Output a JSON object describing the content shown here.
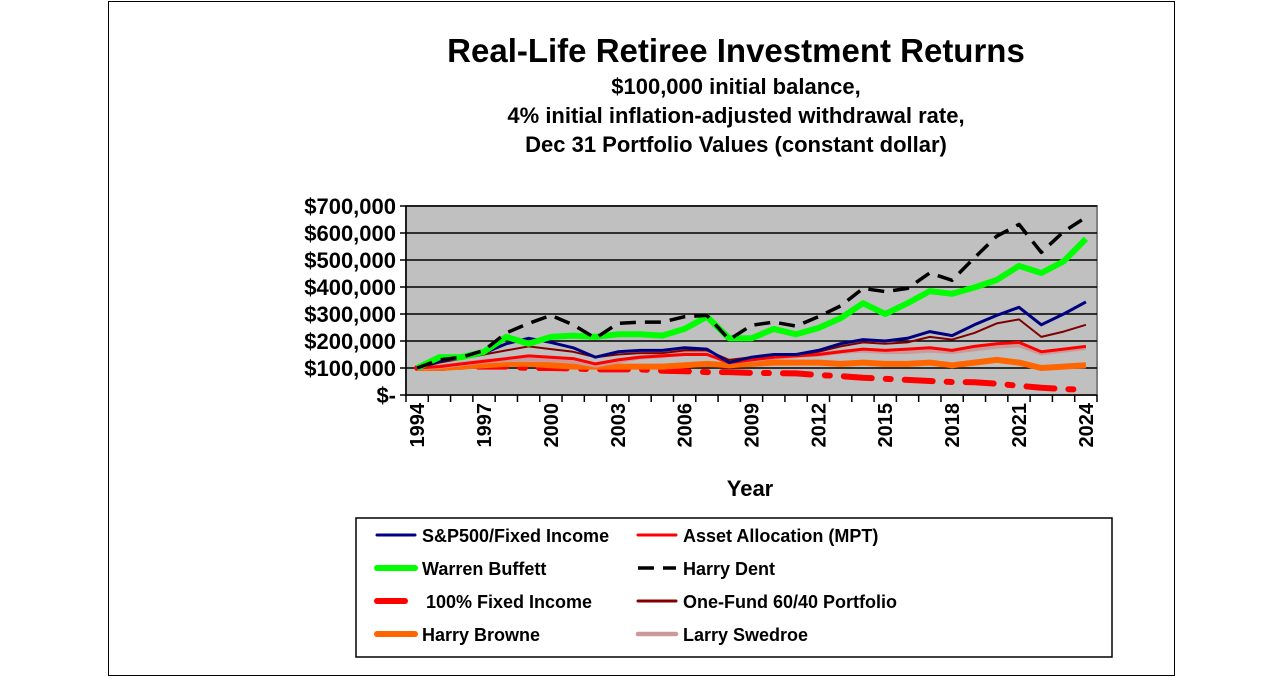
{
  "chart_data": {
    "type": "line",
    "title": "Real-Life Retiree Investment Returns",
    "subtitle": [
      "$100,000 initial balance,",
      "4%  initial inflation-adjusted withdrawal rate,",
      "Dec 31 Portfolio Values (constant dollar)"
    ],
    "xlabel": "Year",
    "ylabel": "",
    "ylim": [
      0,
      700000
    ],
    "yticks": [
      0,
      100000,
      200000,
      300000,
      400000,
      500000,
      600000,
      700000
    ],
    "ytick_labels": [
      "$-",
      "$100,000",
      "$200,000",
      "$300,000",
      "$400,000",
      "$500,000",
      "$600,000",
      "$700,000"
    ],
    "x": [
      1994,
      1995,
      1996,
      1997,
      1998,
      1999,
      2000,
      2001,
      2002,
      2003,
      2004,
      2005,
      2006,
      2007,
      2008,
      2009,
      2010,
      2011,
      2012,
      2013,
      2014,
      2015,
      2016,
      2017,
      2018,
      2019,
      2020,
      2021,
      2022,
      2023,
      2024
    ],
    "xtick_labels": [
      "1994",
      "1997",
      "2000",
      "2003",
      "2006",
      "2009",
      "2012",
      "2015",
      "2018",
      "2021",
      "2024"
    ],
    "grid": true,
    "legend_placement": "bottom",
    "plot_background": "#c0c0c0",
    "series": [
      {
        "name": "S&P500/Fixed Income",
        "color": "#000080",
        "style": "solid",
        "values": [
          100000,
          125000,
          140000,
          155000,
          190000,
          210000,
          195000,
          175000,
          140000,
          160000,
          165000,
          165000,
          175000,
          170000,
          120000,
          140000,
          150000,
          150000,
          165000,
          190000,
          205000,
          200000,
          210000,
          235000,
          220000,
          260000,
          295000,
          325000,
          260000,
          300000,
          345000
        ]
      },
      {
        "name": "Asset Allocation (MPT)",
        "color": "#ff0000",
        "style": "solid",
        "values": [
          100000,
          105000,
          115000,
          125000,
          135000,
          145000,
          140000,
          135000,
          115000,
          130000,
          140000,
          145000,
          150000,
          150000,
          120000,
          130000,
          140000,
          145000,
          150000,
          160000,
          170000,
          165000,
          170000,
          175000,
          165000,
          180000,
          190000,
          195000,
          160000,
          170000,
          180000
        ]
      },
      {
        "name": "Warren Buffett",
        "color": "#00ff00",
        "style": "solid",
        "values": [
          100000,
          140000,
          140000,
          160000,
          215000,
          190000,
          215000,
          220000,
          215000,
          225000,
          225000,
          220000,
          245000,
          290000,
          210000,
          210000,
          245000,
          225000,
          248000,
          285000,
          340000,
          300000,
          340000,
          385000,
          375000,
          398000,
          426000,
          478000,
          452000,
          495000,
          578000
        ]
      },
      {
        "name": "Harry Dent",
        "color": "#000000",
        "style": "dash",
        "values": [
          100000,
          130000,
          140000,
          165000,
          230000,
          265000,
          295000,
          260000,
          210000,
          265000,
          270000,
          270000,
          290000,
          295000,
          205000,
          258000,
          270000,
          255000,
          290000,
          330000,
          395000,
          383000,
          395000,
          452000,
          425000,
          508000,
          588000,
          632000,
          528000,
          605000,
          658000
        ]
      },
      {
        "name": "100% Fixed Income",
        "color": "#ff0000",
        "style": "dashdot",
        "values": [
          100000,
          100000,
          105000,
          105000,
          105000,
          100000,
          100000,
          98000,
          95000,
          95000,
          95000,
          90000,
          88000,
          85000,
          85000,
          82000,
          81000,
          80000,
          74000,
          70000,
          64000,
          60000,
          56000,
          52000,
          48000,
          47000,
          42000,
          34000,
          27000,
          22000,
          20000
        ]
      },
      {
        "name": "One-Fund 60/40 Portfolio",
        "color": "#800000",
        "style": "solid",
        "values": [
          100000,
          120000,
          135000,
          150000,
          165000,
          180000,
          170000,
          160000,
          140000,
          150000,
          155000,
          155000,
          165000,
          165000,
          130000,
          140000,
          150000,
          150000,
          160000,
          180000,
          195000,
          190000,
          195000,
          215000,
          205000,
          230000,
          265000,
          280000,
          215000,
          235000,
          260000
        ]
      },
      {
        "name": "Harry Browne",
        "color": "#ff6600",
        "style": "solid",
        "values": [
          100000,
          100000,
          105000,
          110000,
          115000,
          115000,
          110000,
          105000,
          105000,
          105000,
          105000,
          105000,
          110000,
          115000,
          110000,
          115000,
          120000,
          120000,
          120000,
          115000,
          120000,
          115000,
          115000,
          120000,
          110000,
          120000,
          130000,
          120000,
          100000,
          105000,
          110000
        ]
      },
      {
        "name": "Larry Swedroe",
        "color": "#cc9999",
        "style": "solid",
        "values": [
          100000,
          105000,
          115000,
          125000,
          130000,
          130000,
          130000,
          125000,
          110000,
          125000,
          140000,
          145000,
          155000,
          155000,
          125000,
          130000,
          140000,
          145000,
          150000,
          160000,
          165000,
          160000,
          160000,
          165000,
          160000,
          170000,
          180000,
          185000,
          155000,
          165000,
          175000
        ]
      }
    ]
  }
}
